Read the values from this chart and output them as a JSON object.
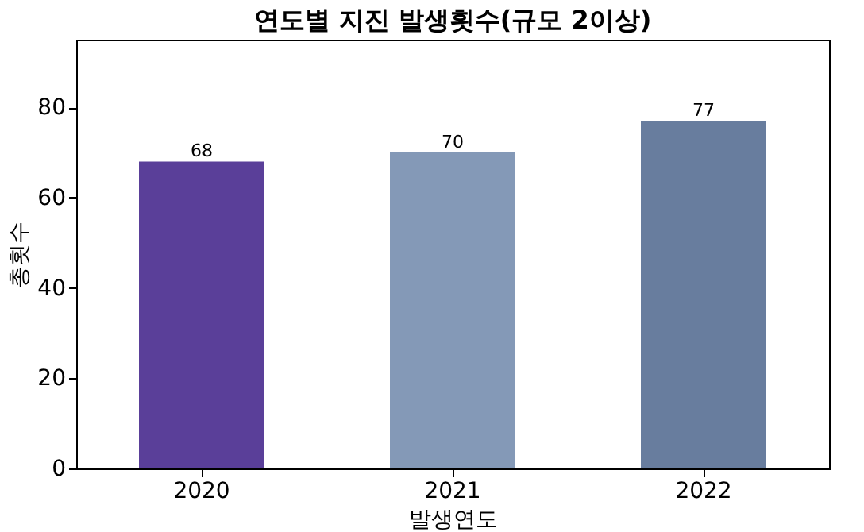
{
  "chart_data": {
    "type": "bar",
    "title": "연도별 지진 발생횟수(규모 2이상)",
    "xlabel": "발생연도",
    "ylabel": "총횟수",
    "categories": [
      "2020",
      "2021",
      "2022"
    ],
    "values": [
      68,
      70,
      77
    ],
    "colors": [
      "#5a3f99",
      "#8499b7",
      "#687d9e"
    ],
    "ylim": [
      0,
      95
    ],
    "yticks": [
      0,
      20,
      40,
      60,
      80
    ],
    "grid": false,
    "data_labels": true
  }
}
